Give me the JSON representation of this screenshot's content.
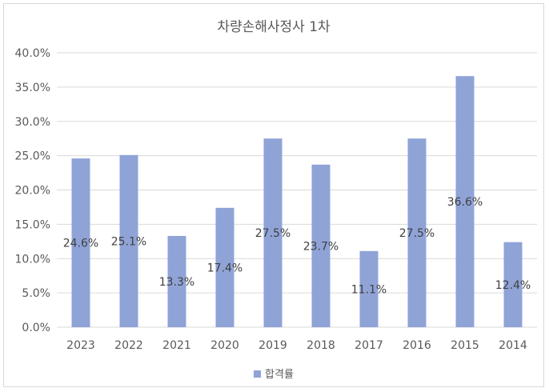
{
  "chart_data": {
    "type": "bar",
    "title": "차량손해사정사 1차",
    "categories": [
      "2023",
      "2022",
      "2021",
      "2020",
      "2019",
      "2018",
      "2017",
      "2016",
      "2015",
      "2014"
    ],
    "series": [
      {
        "name": "합격률",
        "values": [
          24.6,
          25.1,
          13.3,
          17.4,
          27.5,
          23.7,
          11.1,
          27.5,
          36.6,
          12.4
        ],
        "labels": [
          "24.6%",
          "25.1%",
          "13.3%",
          "17.4%",
          "27.5%",
          "23.7%",
          "11.1%",
          "27.5%",
          "36.6%",
          "12.4%"
        ]
      }
    ],
    "ylim": [
      0,
      40
    ],
    "yticks": [
      "0.0%",
      "5.0%",
      "10.0%",
      "15.0%",
      "20.0%",
      "25.0%",
      "30.0%",
      "35.0%",
      "40.0%"
    ],
    "xlabel": "",
    "ylabel": "",
    "grid": true,
    "legend": "bottom",
    "colors": {
      "bar": "#8fa3d7",
      "grid": "#d9d9d9",
      "text": "#595959",
      "label": "#404040"
    }
  }
}
